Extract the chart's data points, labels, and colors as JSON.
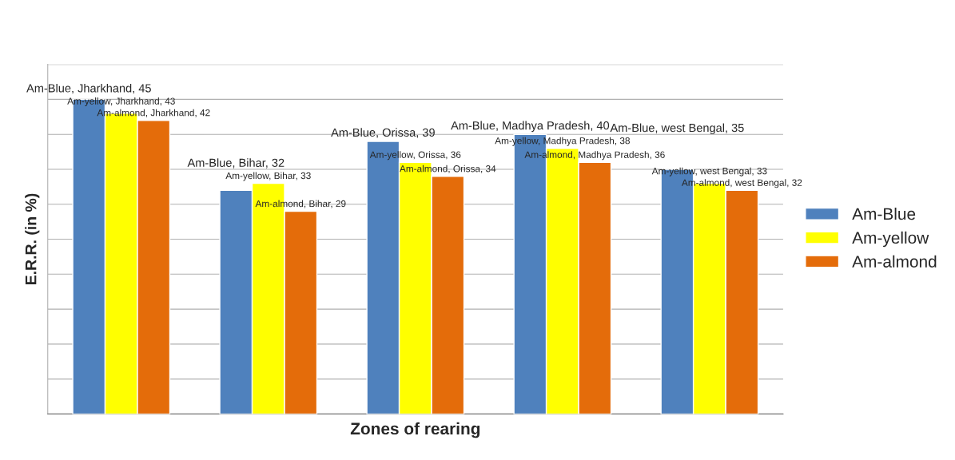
{
  "chart_data": {
    "type": "bar",
    "xlabel": "Zones of rearing",
    "ylabel": "E.R.R. (in %)",
    "categories": [
      null,
      null,
      null,
      null,
      null
    ],
    "series": [
      {
        "name": "Am-Blue",
        "color": "#4f81bd",
        "values": [
          45,
          32,
          39,
          40,
          35
        ],
        "value_labels": [
          "Am-Blue, Jharkhand, 45",
          "Am-Blue, Bihar, 32",
          "Am-Blue, Orissa, 39",
          "Am-Blue, Madhya Pradesh, 40",
          "Am-Blue, west Bengal, 35"
        ]
      },
      {
        "name": "Am-yellow",
        "color": "#ffff00",
        "values": [
          43,
          33,
          36,
          38,
          33
        ],
        "value_labels": [
          "Am-yellow, Jharkhand, 43",
          "Am-yellow, Bihar, 33",
          "Am-yellow, Orissa, 36",
          "Am-yellow, Madhya Pradesh, 38",
          "Am-yellow, west Bengal, 33"
        ]
      },
      {
        "name": "Am-almond",
        "color": "#e46c0a",
        "values": [
          42,
          29,
          34,
          36,
          32
        ],
        "value_labels": [
          "Am-almond, Jharkhand, 42",
          "Am-almond, Bihar, 29",
          "Am-almond, Orissa, 34",
          "Am-almond, Madhya Pradesh, 36",
          "Am-almond, west Bengal, 32"
        ]
      }
    ],
    "ylim": [
      0,
      50
    ],
    "yticks": [
      {
        "value": 0,
        "label": null
      },
      {
        "value": 5,
        "label": null
      },
      {
        "value": 10,
        "label": null
      },
      {
        "value": 15,
        "label": null
      },
      {
        "value": 20,
        "label": null
      },
      {
        "value": 25,
        "label": null
      },
      {
        "value": 30,
        "label": null
      },
      {
        "value": 35,
        "label": null
      },
      {
        "value": 40,
        "label": null
      },
      {
        "value": 45,
        "label": null
      },
      {
        "value": 50,
        "label": null
      }
    ],
    "grid": "y",
    "legend": "right"
  }
}
